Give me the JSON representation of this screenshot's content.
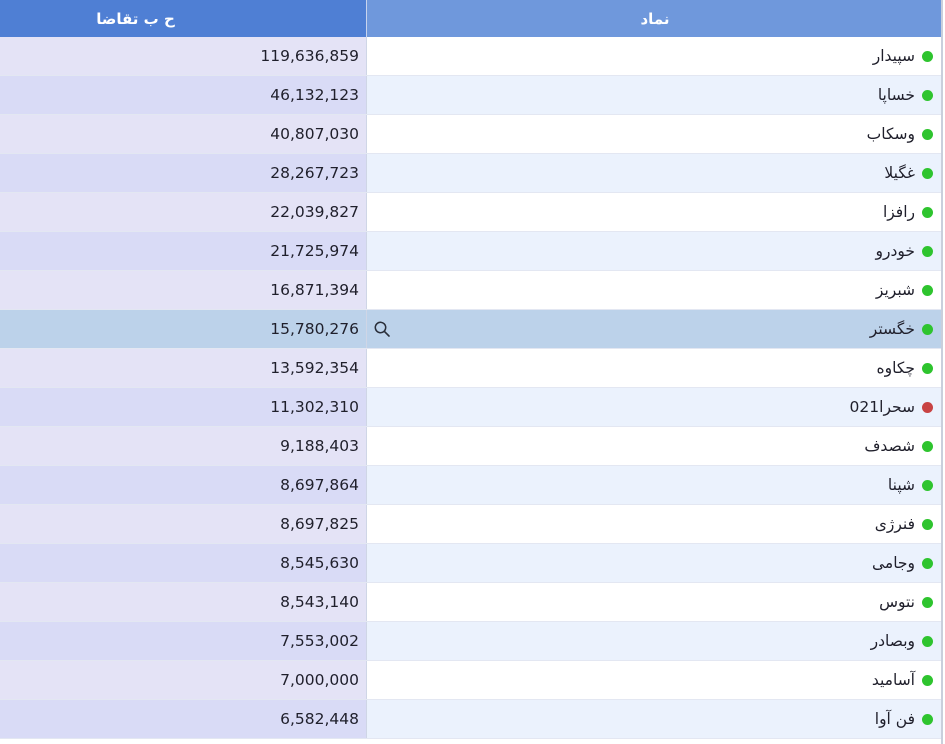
{
  "table": {
    "columns": {
      "demand": "ح ب تقاضا",
      "symbol": "نماد"
    },
    "rows": [
      {
        "symbol": "سپیدار",
        "demand": "119,636,859",
        "status": "green"
      },
      {
        "symbol": "خساپا",
        "demand": "46,132,123",
        "status": "green"
      },
      {
        "symbol": "وسکاب",
        "demand": "40,807,030",
        "status": "green"
      },
      {
        "symbol": "غگیلا",
        "demand": "28,267,723",
        "status": "green"
      },
      {
        "symbol": "رافزا",
        "demand": "22,039,827",
        "status": "green"
      },
      {
        "symbol": "خودرو",
        "demand": "21,725,974",
        "status": "green"
      },
      {
        "symbol": "شبریز",
        "demand": "16,871,394",
        "status": "green"
      },
      {
        "symbol": "خگستر",
        "demand": "15,780,276",
        "status": "green",
        "selected": true
      },
      {
        "symbol": "چکاوه",
        "demand": "13,592,354",
        "status": "green"
      },
      {
        "symbol": "سحرا021",
        "demand": "11,302,310",
        "status": "red"
      },
      {
        "symbol": "شصدف",
        "demand": "9,188,403",
        "status": "green"
      },
      {
        "symbol": "شپنا",
        "demand": "8,697,864",
        "status": "green"
      },
      {
        "symbol": "فنرژی",
        "demand": "8,697,825",
        "status": "green"
      },
      {
        "symbol": "وجامی",
        "demand": "8,545,630",
        "status": "green"
      },
      {
        "symbol": "نتوس",
        "demand": "8,543,140",
        "status": "green"
      },
      {
        "symbol": "وبصادر",
        "demand": "7,553,002",
        "status": "green"
      },
      {
        "symbol": "آسامید",
        "demand": "7,000,000",
        "status": "green"
      },
      {
        "symbol": "فن آوا",
        "demand": "6,582,448",
        "status": "green"
      }
    ],
    "selected_row_icon": "search-icon"
  },
  "colors": {
    "header_demand": "#4f7fd4",
    "header_symbol": "#6f98dc",
    "status_green": "#2ec42e",
    "status_red": "#c84343",
    "selected_row": "#bcd2ea"
  }
}
